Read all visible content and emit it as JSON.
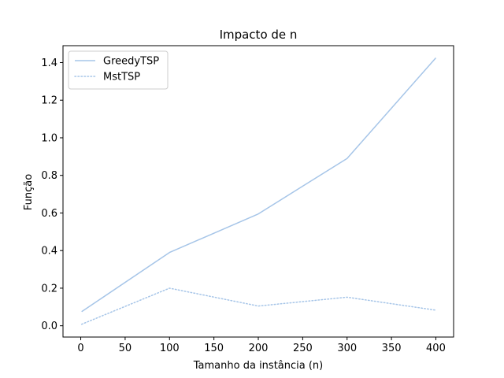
{
  "chart_data": {
    "type": "line",
    "title": "Impacto de n",
    "xlabel": "Tamanho da instância (n)",
    "ylabel": "Função",
    "xlim": [
      -20,
      420
    ],
    "ylim": [
      -0.06,
      1.49
    ],
    "xticks": [
      0,
      50,
      100,
      150,
      200,
      250,
      300,
      350,
      400
    ],
    "xtick_labels": [
      "0",
      "50",
      "100",
      "150",
      "200",
      "250",
      "300",
      "350",
      "400"
    ],
    "yticks": [
      0.0,
      0.2,
      0.4,
      0.6,
      0.8,
      1.0,
      1.2,
      1.4
    ],
    "ytick_labels": [
      "0.0",
      "0.2",
      "0.4",
      "0.6",
      "0.8",
      "1.0",
      "1.2",
      "1.4"
    ],
    "grid": false,
    "legend_position": "top-left",
    "series": [
      {
        "name": "GreedyTSP",
        "style": "solid",
        "color": "#a6c5e8",
        "x": [
          1,
          100,
          200,
          300,
          400
        ],
        "y": [
          0.075,
          0.39,
          0.595,
          0.89,
          1.425
        ]
      },
      {
        "name": "MstTSP",
        "style": "dotted",
        "color": "#a6c5e8",
        "x": [
          1,
          100,
          200,
          300,
          400
        ],
        "y": [
          0.008,
          0.2,
          0.105,
          0.152,
          0.083
        ]
      }
    ]
  }
}
